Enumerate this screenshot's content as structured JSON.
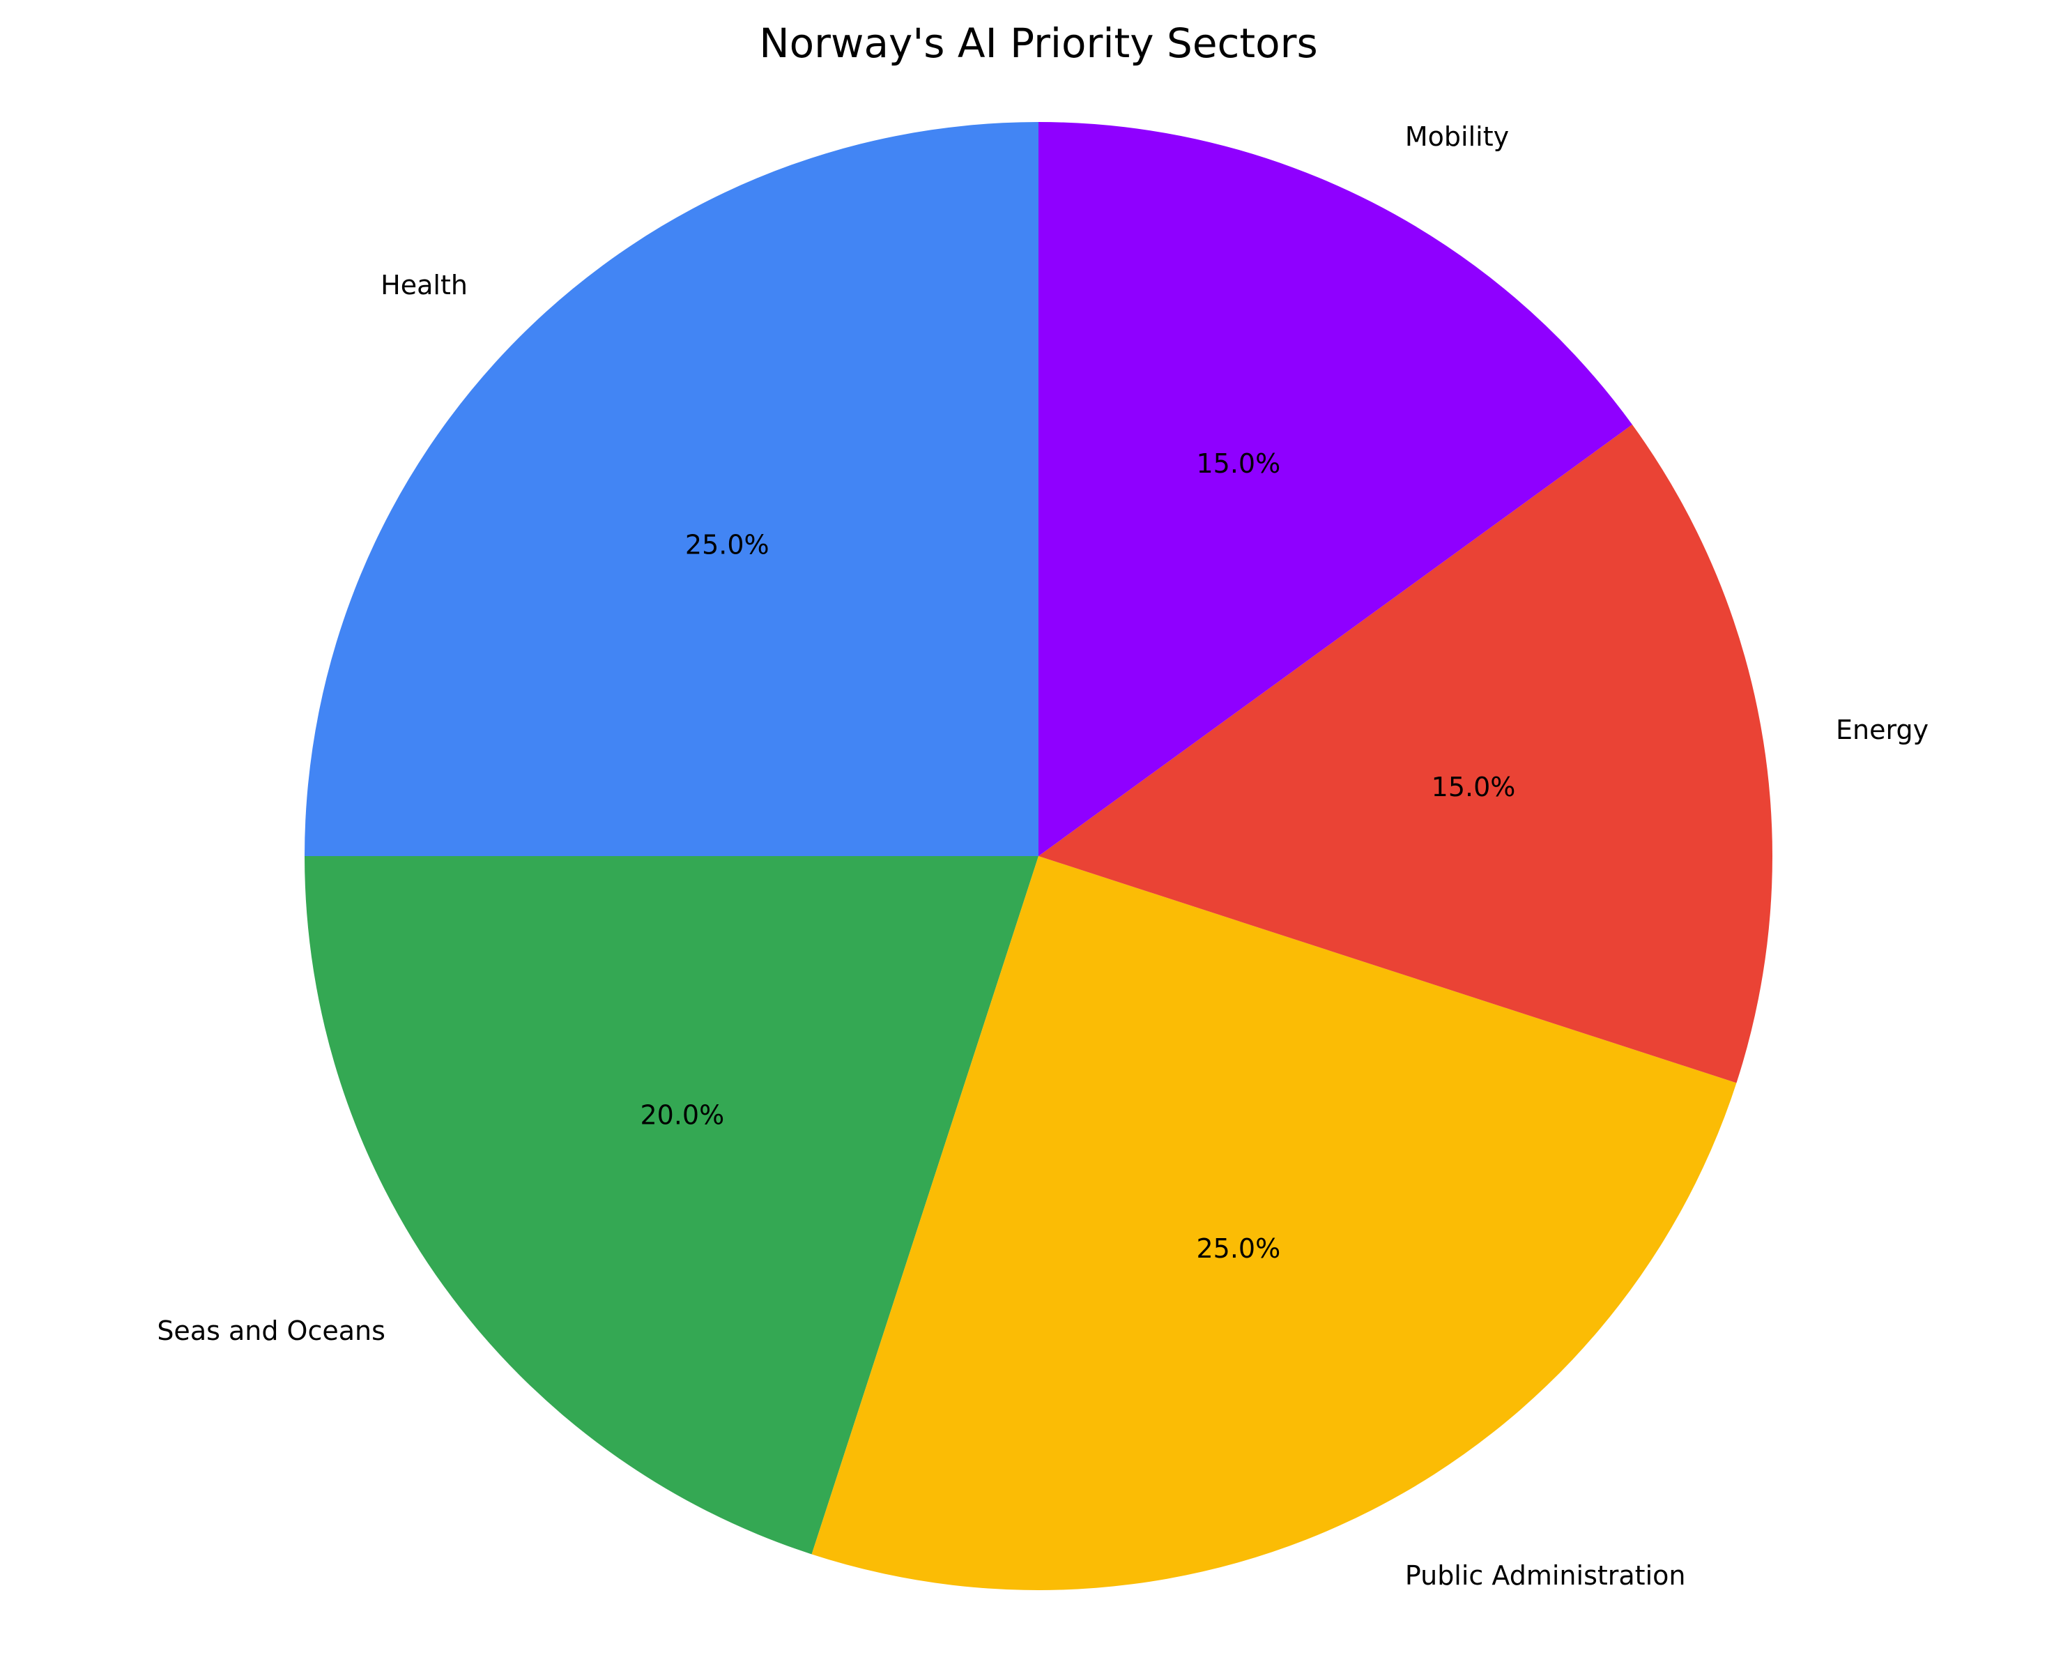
{
  "chart_data": {
    "type": "pie",
    "title": "Norway's AI Priority Sectors",
    "labels": [
      "Health",
      "Seas and Oceans",
      "Public Administration",
      "Energy",
      "Mobility"
    ],
    "values": [
      25.0,
      20.0,
      25.0,
      15.0,
      15.0
    ],
    "percent_labels": [
      "25.0%",
      "20.0%",
      "25.0%",
      "15.0%",
      "15.0%"
    ],
    "colors": [
      "#4285F4",
      "#34A853",
      "#FBBC05",
      "#EA4335",
      "#8F00FF"
    ],
    "start_angle_degrees": 90,
    "direction": "counterclockwise",
    "legend": "none"
  }
}
